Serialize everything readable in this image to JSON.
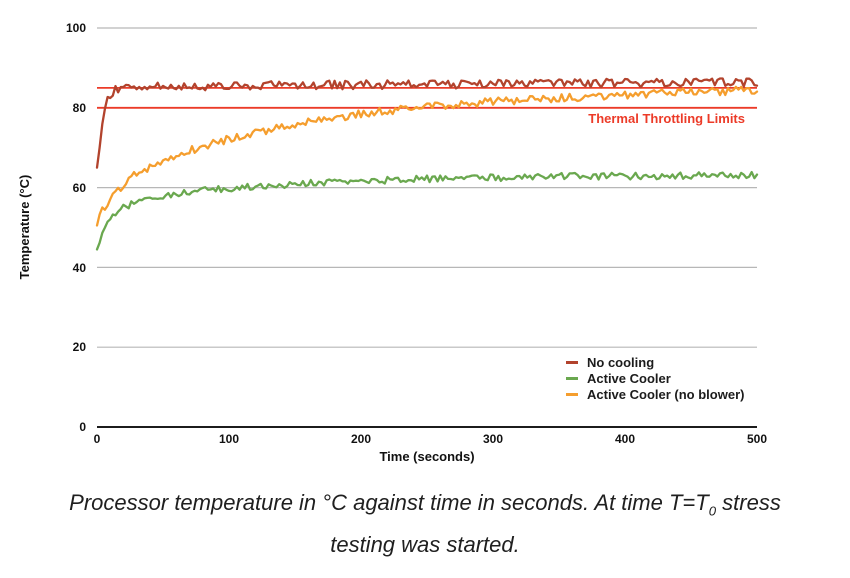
{
  "chart_data": {
    "type": "line",
    "xlabel": "Time (seconds)",
    "ylabel": "Temperature (°C)",
    "xlim": [
      0,
      500
    ],
    "ylim": [
      0,
      100
    ],
    "xticks": [
      "0",
      "100",
      "200",
      "300",
      "400",
      "500"
    ],
    "yticks": [
      "100",
      "80",
      "60",
      "40",
      "20",
      "0"
    ],
    "grid": "horizontal",
    "gridline_temps": [
      100,
      80,
      60,
      40,
      20
    ],
    "gridline_color": "#b7b7b7",
    "axis_color": "#1c1c1c",
    "legend_position": "inside-bottom-right",
    "sample_step_seconds": 2,
    "series": [
      {
        "name": "No cooling",
        "color": "#b2432d",
        "noise": 1.1,
        "trend": [
          [
            0,
            65
          ],
          [
            2,
            71
          ],
          [
            4,
            77
          ],
          [
            6,
            80.5
          ],
          [
            8,
            82.5
          ],
          [
            10,
            83.5
          ],
          [
            15,
            84.8
          ],
          [
            20,
            85.1
          ],
          [
            30,
            85.2
          ],
          [
            50,
            85.3
          ],
          [
            100,
            85.5
          ],
          [
            150,
            85.6
          ],
          [
            200,
            85.8
          ],
          [
            250,
            85.9
          ],
          [
            300,
            86.0
          ],
          [
            350,
            86.1
          ],
          [
            400,
            86.2
          ],
          [
            450,
            86.3
          ],
          [
            500,
            86.4
          ]
        ]
      },
      {
        "name": "Active Cooler",
        "color": "#6aa84f",
        "noise": 0.85,
        "trend": [
          [
            0,
            44.5
          ],
          [
            2,
            46.5
          ],
          [
            4,
            48.2
          ],
          [
            6,
            49.5
          ],
          [
            8,
            50.6
          ],
          [
            10,
            51.7
          ],
          [
            15,
            53.6
          ],
          [
            20,
            54.9
          ],
          [
            25,
            55.8
          ],
          [
            30,
            56.4
          ],
          [
            40,
            57.3
          ],
          [
            50,
            57.9
          ],
          [
            60,
            58.4
          ],
          [
            70,
            58.8
          ],
          [
            80,
            59.2
          ],
          [
            90,
            59.5
          ],
          [
            100,
            59.7
          ],
          [
            120,
            60.3
          ],
          [
            140,
            60.7
          ],
          [
            160,
            61.1
          ],
          [
            180,
            61.4
          ],
          [
            200,
            61.7
          ],
          [
            250,
            62.2
          ],
          [
            300,
            62.5
          ],
          [
            350,
            62.8
          ],
          [
            400,
            62.9
          ],
          [
            450,
            63.0
          ],
          [
            500,
            63.1
          ]
        ]
      },
      {
        "name": "Active Cooler (no blower)",
        "color": "#f59e2e",
        "noise": 1.0,
        "trend": [
          [
            0,
            50.5
          ],
          [
            2,
            52.5
          ],
          [
            4,
            54.1
          ],
          [
            6,
            55.4
          ],
          [
            8,
            56.2
          ],
          [
            10,
            56.9
          ],
          [
            15,
            58.9
          ],
          [
            20,
            60.8
          ],
          [
            25,
            62.2
          ],
          [
            30,
            63.4
          ],
          [
            40,
            65.3
          ],
          [
            50,
            66.9
          ],
          [
            60,
            68.2
          ],
          [
            80,
            70.3
          ],
          [
            100,
            72.2
          ],
          [
            120,
            73.8
          ],
          [
            140,
            75.2
          ],
          [
            160,
            76.4
          ],
          [
            180,
            77.5
          ],
          [
            200,
            78.4
          ],
          [
            220,
            79.2
          ],
          [
            240,
            79.9
          ],
          [
            260,
            80.5
          ],
          [
            280,
            81.0
          ],
          [
            300,
            81.5
          ],
          [
            320,
            81.9
          ],
          [
            340,
            82.3
          ],
          [
            360,
            82.6
          ],
          [
            380,
            82.9
          ],
          [
            400,
            83.2
          ],
          [
            420,
            83.5
          ],
          [
            440,
            83.8
          ],
          [
            460,
            84.0
          ],
          [
            480,
            84.2
          ],
          [
            500,
            84.4
          ]
        ]
      }
    ],
    "annotations": {
      "label": "Thermal Throttling Limits",
      "color": "#ec3b28",
      "lines_temp": [
        85,
        80
      ]
    }
  },
  "caption": {
    "line1_pre": "Processor temperature in °C against time in seconds. At time T=T",
    "line1_sub": "0",
    "line1_post": " stress",
    "line2": "testing was started."
  }
}
